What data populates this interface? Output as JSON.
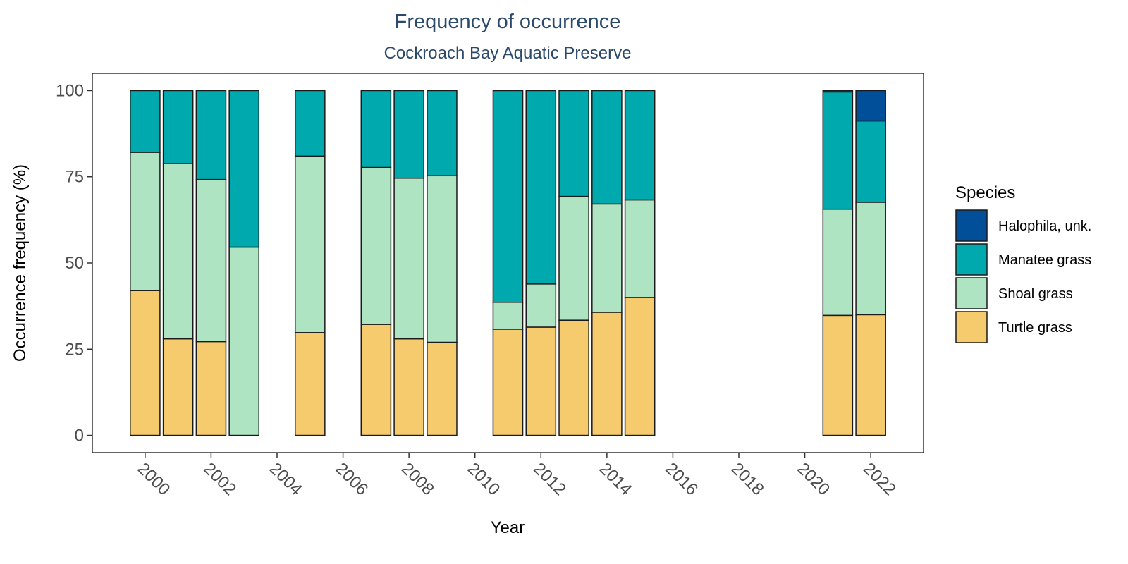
{
  "chart_data": {
    "type": "bar",
    "stacked": true,
    "title": "Frequency of occurrence",
    "subtitle": "Cockroach Bay Aquatic Preserve",
    "xlabel": "Year",
    "ylabel": "Occurrence frequency (%)",
    "xlim": [
      1998.4,
      2023.6
    ],
    "ylim": [
      -5,
      105
    ],
    "x_ticks": [
      2000,
      2002,
      2004,
      2006,
      2008,
      2010,
      2012,
      2014,
      2016,
      2018,
      2020,
      2022
    ],
    "y_ticks": [
      0,
      25,
      50,
      75,
      100
    ],
    "legend_title": "Species",
    "legend_position": "right",
    "years": [
      2000,
      2001,
      2002,
      2003,
      2005,
      2007,
      2008,
      2009,
      2011,
      2012,
      2013,
      2014,
      2015,
      2021,
      2022
    ],
    "series": [
      {
        "name": "Turtle grass",
        "color": "#F6CB6E",
        "values": [
          42,
          28,
          27.2,
          0,
          29.8,
          32.2,
          28,
          27,
          30.8,
          31.4,
          33.4,
          35.7,
          40,
          34.8,
          35
        ]
      },
      {
        "name": "Shoal grass",
        "color": "#AEE4C2",
        "values": [
          40.1,
          50.8,
          47,
          54.6,
          51.2,
          45.5,
          46.6,
          48.3,
          7.8,
          12.5,
          35.9,
          31.4,
          28.3,
          30.8,
          32.6
        ]
      },
      {
        "name": "Manatee grass",
        "color": "#00A9AD",
        "values": [
          17.9,
          21.2,
          25.8,
          45.4,
          19,
          22.3,
          25.4,
          24.7,
          61.4,
          56.1,
          30.7,
          32.9,
          31.7,
          34,
          23.6
        ]
      },
      {
        "name": "Halophila, unk.",
        "color": "#004F98",
        "values": [
          0,
          0,
          0,
          0,
          0,
          0,
          0,
          0,
          0,
          0,
          0,
          0,
          0,
          0.4,
          8.8
        ]
      }
    ],
    "legend_order": [
      "Halophila, unk.",
      "Manatee grass",
      "Shoal grass",
      "Turtle grass"
    ]
  }
}
